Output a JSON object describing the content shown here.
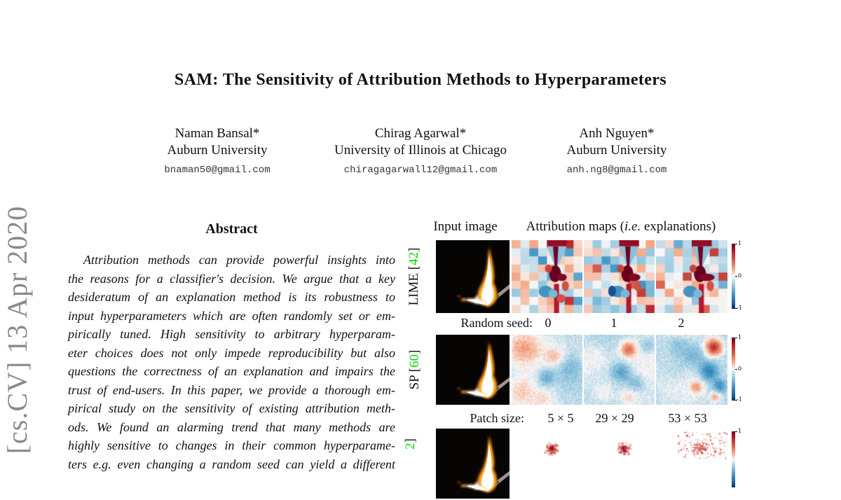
{
  "stamp": "[cs.CV] 13 Apr 2020",
  "title": "SAM: The Sensitivity of Attribution Methods to Hyperparameters",
  "authors": [
    {
      "name": "Naman Bansal*",
      "affiliation": "Auburn University",
      "email": "bnaman50@gmail.com"
    },
    {
      "name": "Chirag Agarwal*",
      "affiliation": "University of Illinois at Chicago",
      "email": "chiragagarwall12@gmail.com"
    },
    {
      "name": "Anh Nguyen*",
      "affiliation": "Auburn University",
      "email": "anh.ng8@gmail.com"
    }
  ],
  "abstract": {
    "heading": "Abstract",
    "lines": [
      "Attribution methods can provide powerful insights into",
      "the reasons for a classifier's decision. We argue that a key",
      "desideratum of an explanation method is its robustness to",
      "input hyperparameters which are often randomly set or em-",
      "pirically tuned. High sensitivity to arbitrary hyperparam-",
      "eter choices does not only impede reproducibility but also",
      "questions the correctness of an explanation and impairs the",
      "trust of end-users. In this paper, we provide a thorough em-",
      "pirical study on the sensitivity of existing attribution meth-",
      "ods. We found an alarming trend that many methods are",
      "highly sensitive to changes in their common hyperparame-",
      "ters e.g. even changing a random seed can yield a different"
    ]
  },
  "figure": {
    "header_input": "Input image",
    "header_maps_prefix": "Attribution maps (",
    "header_maps_italic": "i.e.",
    "header_maps_suffix": " explanations)",
    "rows": [
      {
        "label_prefix": "LIME [",
        "label_num": "42",
        "label_suffix": "]",
        "param_label": "Random seed:",
        "values": [
          "0",
          "1",
          "2"
        ]
      },
      {
        "label_prefix": "SP [",
        "label_num": "60",
        "label_suffix": "]",
        "param_label": "Patch size:",
        "values": [
          "5 × 5",
          "29 × 29",
          "53 × 53"
        ]
      },
      {
        "label_prefix": "",
        "label_num": "2",
        "label_suffix": "]"
      }
    ],
    "colorbar": {
      "max": "1",
      "mid": "0",
      "min": "-1"
    },
    "colors": {
      "citation": "#00d800",
      "positive_max": "#67001f",
      "negative_max": "#053061"
    }
  }
}
